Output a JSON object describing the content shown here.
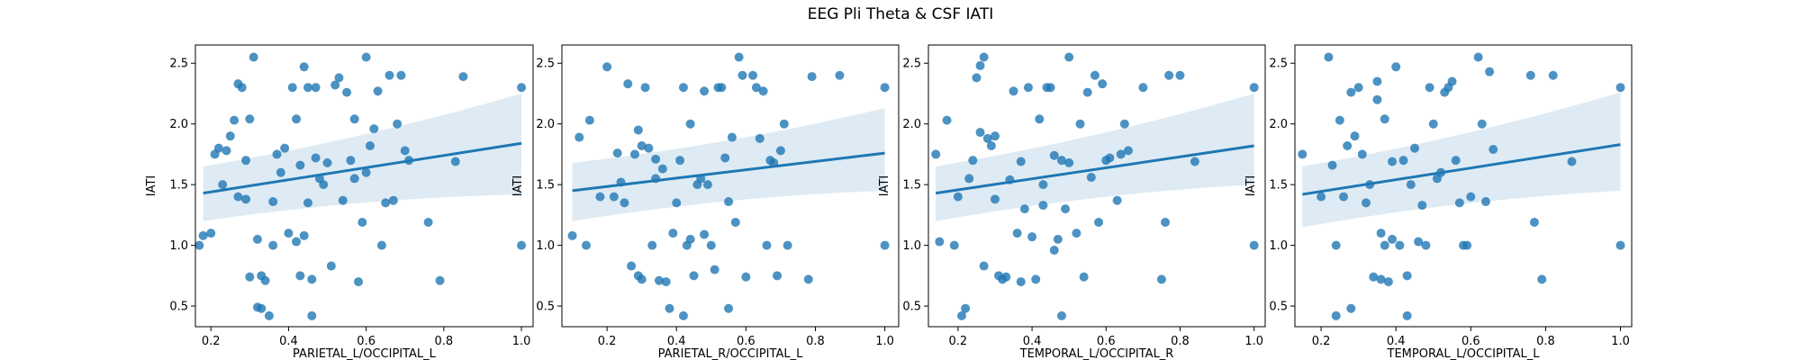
{
  "figure": {
    "title": "EEG Pli Theta & CSF IATI"
  },
  "style": {
    "point_color": "#1f77b4",
    "line_color": "#1f77b4",
    "band_color": "#1f77b4"
  },
  "chart_data": [
    {
      "type": "scatter",
      "xlabel": "PARIETAL_L/OCCIPITAL_L",
      "ylabel": "IATI",
      "xlim": [
        0.16,
        1.03
      ],
      "ylim": [
        0.33,
        2.65
      ],
      "xticks": [
        0.2,
        0.4,
        0.6,
        0.8,
        1.0
      ],
      "yticks": [
        0.5,
        1.0,
        1.5,
        2.0,
        2.5
      ],
      "regression": {
        "x": [
          0.18,
          1.0
        ],
        "y": [
          1.43,
          1.84
        ],
        "ci_start": [
          1.2,
          1.65
        ],
        "ci_end": [
          1.42,
          2.25
        ]
      },
      "points": [
        [
          0.17,
          1.0
        ],
        [
          0.18,
          1.08
        ],
        [
          0.2,
          1.1
        ],
        [
          0.21,
          1.75
        ],
        [
          0.22,
          1.8
        ],
        [
          0.23,
          1.5
        ],
        [
          0.24,
          1.78
        ],
        [
          0.25,
          1.9
        ],
        [
          0.26,
          2.03
        ],
        [
          0.27,
          2.33
        ],
        [
          0.28,
          2.3
        ],
        [
          0.27,
          1.4
        ],
        [
          0.29,
          1.38
        ],
        [
          0.29,
          1.7
        ],
        [
          0.3,
          2.04
        ],
        [
          0.31,
          2.55
        ],
        [
          0.3,
          0.74
        ],
        [
          0.32,
          0.49
        ],
        [
          0.33,
          0.48
        ],
        [
          0.32,
          1.05
        ],
        [
          0.33,
          0.75
        ],
        [
          0.34,
          0.71
        ],
        [
          0.35,
          0.42
        ],
        [
          0.36,
          1.0
        ],
        [
          0.36,
          1.36
        ],
        [
          0.37,
          1.75
        ],
        [
          0.38,
          1.6
        ],
        [
          0.39,
          1.8
        ],
        [
          0.4,
          1.1
        ],
        [
          0.41,
          2.3
        ],
        [
          0.42,
          1.03
        ],
        [
          0.42,
          2.04
        ],
        [
          0.43,
          0.75
        ],
        [
          0.43,
          1.66
        ],
        [
          0.44,
          1.08
        ],
        [
          0.44,
          2.47
        ],
        [
          0.45,
          1.35
        ],
        [
          0.45,
          2.3
        ],
        [
          0.46,
          0.72
        ],
        [
          0.46,
          0.42
        ],
        [
          0.47,
          1.72
        ],
        [
          0.47,
          2.3
        ],
        [
          0.48,
          1.55
        ],
        [
          0.49,
          1.5
        ],
        [
          0.5,
          1.68
        ],
        [
          0.51,
          0.83
        ],
        [
          0.52,
          2.32
        ],
        [
          0.53,
          2.38
        ],
        [
          0.54,
          1.37
        ],
        [
          0.55,
          2.26
        ],
        [
          0.56,
          1.7
        ],
        [
          0.57,
          1.55
        ],
        [
          0.57,
          2.04
        ],
        [
          0.58,
          0.7
        ],
        [
          0.59,
          1.19
        ],
        [
          0.6,
          2.55
        ],
        [
          0.6,
          1.6
        ],
        [
          0.61,
          1.82
        ],
        [
          0.62,
          1.96
        ],
        [
          0.63,
          2.27
        ],
        [
          0.64,
          1.0
        ],
        [
          0.65,
          1.35
        ],
        [
          0.66,
          2.4
        ],
        [
          0.67,
          1.37
        ],
        [
          0.68,
          2.0
        ],
        [
          0.69,
          2.4
        ],
        [
          0.7,
          1.78
        ],
        [
          0.71,
          1.7
        ],
        [
          0.76,
          1.19
        ],
        [
          0.79,
          0.71
        ],
        [
          0.83,
          1.69
        ],
        [
          0.85,
          2.39
        ],
        [
          1.0,
          1.0
        ],
        [
          1.0,
          2.3
        ]
      ]
    },
    {
      "type": "scatter",
      "xlabel": "PARIETAL_R/OCCIPITAL_L",
      "ylabel": "IATI",
      "xlim": [
        0.07,
        1.04
      ],
      "ylim": [
        0.33,
        2.65
      ],
      "xticks": [
        0.2,
        0.4,
        0.6,
        0.8,
        1.0
      ],
      "yticks": [
        0.5,
        1.0,
        1.5,
        2.0,
        2.5
      ],
      "regression": {
        "x": [
          0.1,
          1.0
        ],
        "y": [
          1.45,
          1.76
        ],
        "ci_start": [
          1.2,
          1.68
        ],
        "ci_end": [
          1.45,
          2.13
        ]
      },
      "points": [
        [
          0.1,
          1.08
        ],
        [
          0.12,
          1.89
        ],
        [
          0.14,
          1.0
        ],
        [
          0.15,
          2.03
        ],
        [
          0.18,
          1.4
        ],
        [
          0.2,
          2.47
        ],
        [
          0.22,
          1.4
        ],
        [
          0.23,
          1.76
        ],
        [
          0.24,
          1.52
        ],
        [
          0.25,
          1.35
        ],
        [
          0.26,
          2.33
        ],
        [
          0.27,
          0.83
        ],
        [
          0.28,
          1.75
        ],
        [
          0.29,
          0.75
        ],
        [
          0.29,
          1.95
        ],
        [
          0.3,
          0.72
        ],
        [
          0.3,
          1.82
        ],
        [
          0.31,
          2.3
        ],
        [
          0.32,
          1.8
        ],
        [
          0.33,
          1.0
        ],
        [
          0.34,
          1.55
        ],
        [
          0.34,
          1.71
        ],
        [
          0.35,
          0.71
        ],
        [
          0.36,
          1.63
        ],
        [
          0.37,
          0.7
        ],
        [
          0.38,
          0.48
        ],
        [
          0.39,
          1.1
        ],
        [
          0.4,
          1.35
        ],
        [
          0.41,
          1.7
        ],
        [
          0.42,
          2.3
        ],
        [
          0.42,
          0.42
        ],
        [
          0.43,
          1.0
        ],
        [
          0.44,
          1.05
        ],
        [
          0.44,
          2.0
        ],
        [
          0.45,
          0.75
        ],
        [
          0.46,
          1.5
        ],
        [
          0.47,
          1.55
        ],
        [
          0.48,
          1.09
        ],
        [
          0.48,
          2.27
        ],
        [
          0.49,
          1.5
        ],
        [
          0.5,
          1.0
        ],
        [
          0.51,
          0.8
        ],
        [
          0.52,
          2.3
        ],
        [
          0.53,
          2.3
        ],
        [
          0.54,
          1.72
        ],
        [
          0.55,
          1.36
        ],
        [
          0.55,
          0.48
        ],
        [
          0.56,
          1.89
        ],
        [
          0.57,
          1.19
        ],
        [
          0.58,
          2.55
        ],
        [
          0.59,
          2.4
        ],
        [
          0.6,
          0.74
        ],
        [
          0.62,
          2.4
        ],
        [
          0.63,
          2.3
        ],
        [
          0.64,
          1.88
        ],
        [
          0.65,
          2.27
        ],
        [
          0.66,
          1.0
        ],
        [
          0.67,
          1.7
        ],
        [
          0.68,
          1.68
        ],
        [
          0.69,
          0.75
        ],
        [
          0.7,
          1.78
        ],
        [
          0.71,
          2.0
        ],
        [
          0.72,
          1.0
        ],
        [
          0.78,
          0.72
        ],
        [
          0.79,
          2.39
        ],
        [
          0.87,
          2.4
        ],
        [
          1.0,
          1.0
        ],
        [
          1.0,
          2.3
        ]
      ]
    },
    {
      "type": "scatter",
      "xlabel": "TEMPORAL_L/OCCIPITAL_R",
      "ylabel": "IATI",
      "xlim": [
        0.12,
        1.03
      ],
      "ylim": [
        0.33,
        2.65
      ],
      "xticks": [
        0.2,
        0.4,
        0.6,
        0.8,
        1.0
      ],
      "yticks": [
        0.5,
        1.0,
        1.5,
        2.0,
        2.5
      ],
      "regression": {
        "x": [
          0.14,
          1.0
        ],
        "y": [
          1.43,
          1.82
        ],
        "ci_start": [
          1.2,
          1.65
        ],
        "ci_end": [
          1.5,
          2.25
        ]
      },
      "points": [
        [
          0.14,
          1.75
        ],
        [
          0.15,
          1.03
        ],
        [
          0.17,
          2.03
        ],
        [
          0.19,
          1.0
        ],
        [
          0.2,
          1.4
        ],
        [
          0.21,
          0.42
        ],
        [
          0.22,
          0.48
        ],
        [
          0.23,
          1.55
        ],
        [
          0.24,
          1.7
        ],
        [
          0.25,
          2.38
        ],
        [
          0.26,
          1.93
        ],
        [
          0.26,
          2.48
        ],
        [
          0.27,
          0.83
        ],
        [
          0.27,
          2.55
        ],
        [
          0.28,
          1.88
        ],
        [
          0.29,
          1.82
        ],
        [
          0.3,
          1.9
        ],
        [
          0.3,
          1.38
        ],
        [
          0.31,
          0.75
        ],
        [
          0.32,
          0.72
        ],
        [
          0.33,
          0.74
        ],
        [
          0.34,
          1.54
        ],
        [
          0.35,
          2.27
        ],
        [
          0.36,
          1.1
        ],
        [
          0.37,
          0.7
        ],
        [
          0.37,
          1.69
        ],
        [
          0.38,
          1.3
        ],
        [
          0.39,
          2.3
        ],
        [
          0.4,
          1.07
        ],
        [
          0.41,
          0.72
        ],
        [
          0.42,
          2.04
        ],
        [
          0.43,
          1.5
        ],
        [
          0.43,
          1.33
        ],
        [
          0.44,
          2.3
        ],
        [
          0.45,
          2.3
        ],
        [
          0.46,
          1.74
        ],
        [
          0.46,
          0.96
        ],
        [
          0.47,
          1.05
        ],
        [
          0.48,
          0.42
        ],
        [
          0.48,
          1.7
        ],
        [
          0.49,
          1.3
        ],
        [
          0.5,
          2.55
        ],
        [
          0.5,
          1.68
        ],
        [
          0.52,
          1.1
        ],
        [
          0.53,
          2.0
        ],
        [
          0.54,
          0.74
        ],
        [
          0.55,
          2.26
        ],
        [
          0.56,
          1.56
        ],
        [
          0.57,
          2.4
        ],
        [
          0.58,
          1.19
        ],
        [
          0.59,
          2.33
        ],
        [
          0.6,
          1.7
        ],
        [
          0.61,
          1.72
        ],
        [
          0.63,
          1.37
        ],
        [
          0.64,
          1.75
        ],
        [
          0.65,
          2.0
        ],
        [
          0.66,
          1.78
        ],
        [
          0.7,
          2.3
        ],
        [
          0.75,
          0.72
        ],
        [
          0.76,
          1.19
        ],
        [
          0.77,
          2.4
        ],
        [
          0.8,
          2.4
        ],
        [
          0.84,
          1.69
        ],
        [
          1.0,
          1.0
        ],
        [
          1.0,
          2.3
        ]
      ]
    },
    {
      "type": "scatter",
      "xlabel": "TEMPORAL_L/OCCIPITAL_L",
      "ylabel": "IATI",
      "xlim": [
        0.13,
        1.03
      ],
      "ylim": [
        0.33,
        2.65
      ],
      "xticks": [
        0.2,
        0.4,
        0.6,
        0.8,
        1.0
      ],
      "yticks": [
        0.5,
        1.0,
        1.5,
        2.0,
        2.5
      ],
      "regression": {
        "x": [
          0.15,
          1.0
        ],
        "y": [
          1.42,
          1.83
        ],
        "ci_start": [
          1.15,
          1.65
        ],
        "ci_end": [
          1.45,
          2.26
        ]
      },
      "points": [
        [
          0.15,
          1.75
        ],
        [
          0.2,
          1.4
        ],
        [
          0.22,
          2.55
        ],
        [
          0.23,
          1.66
        ],
        [
          0.24,
          1.0
        ],
        [
          0.24,
          0.42
        ],
        [
          0.25,
          2.03
        ],
        [
          0.26,
          1.4
        ],
        [
          0.27,
          1.82
        ],
        [
          0.28,
          0.48
        ],
        [
          0.28,
          2.26
        ],
        [
          0.29,
          1.9
        ],
        [
          0.3,
          2.3
        ],
        [
          0.31,
          1.75
        ],
        [
          0.32,
          1.35
        ],
        [
          0.33,
          1.5
        ],
        [
          0.34,
          0.74
        ],
        [
          0.35,
          2.35
        ],
        [
          0.35,
          2.2
        ],
        [
          0.36,
          1.1
        ],
        [
          0.36,
          0.72
        ],
        [
          0.37,
          2.04
        ],
        [
          0.37,
          1.0
        ],
        [
          0.38,
          0.7
        ],
        [
          0.39,
          1.05
        ],
        [
          0.39,
          1.69
        ],
        [
          0.4,
          2.47
        ],
        [
          0.41,
          1.0
        ],
        [
          0.42,
          1.7
        ],
        [
          0.43,
          0.42
        ],
        [
          0.43,
          0.75
        ],
        [
          0.44,
          1.5
        ],
        [
          0.45,
          1.8
        ],
        [
          0.46,
          1.03
        ],
        [
          0.47,
          1.33
        ],
        [
          0.48,
          1.0
        ],
        [
          0.49,
          2.3
        ],
        [
          0.5,
          2.0
        ],
        [
          0.51,
          1.55
        ],
        [
          0.52,
          1.6
        ],
        [
          0.53,
          2.26
        ],
        [
          0.54,
          2.3
        ],
        [
          0.55,
          2.35
        ],
        [
          0.56,
          1.7
        ],
        [
          0.57,
          1.35
        ],
        [
          0.58,
          1.0
        ],
        [
          0.59,
          1.0
        ],
        [
          0.6,
          1.4
        ],
        [
          0.62,
          2.55
        ],
        [
          0.63,
          2.0
        ],
        [
          0.64,
          1.36
        ],
        [
          0.65,
          2.43
        ],
        [
          0.66,
          1.79
        ],
        [
          0.76,
          2.4
        ],
        [
          0.77,
          1.19
        ],
        [
          0.79,
          0.72
        ],
        [
          0.82,
          2.4
        ],
        [
          0.87,
          1.69
        ],
        [
          1.0,
          1.0
        ],
        [
          1.0,
          2.3
        ]
      ]
    }
  ]
}
